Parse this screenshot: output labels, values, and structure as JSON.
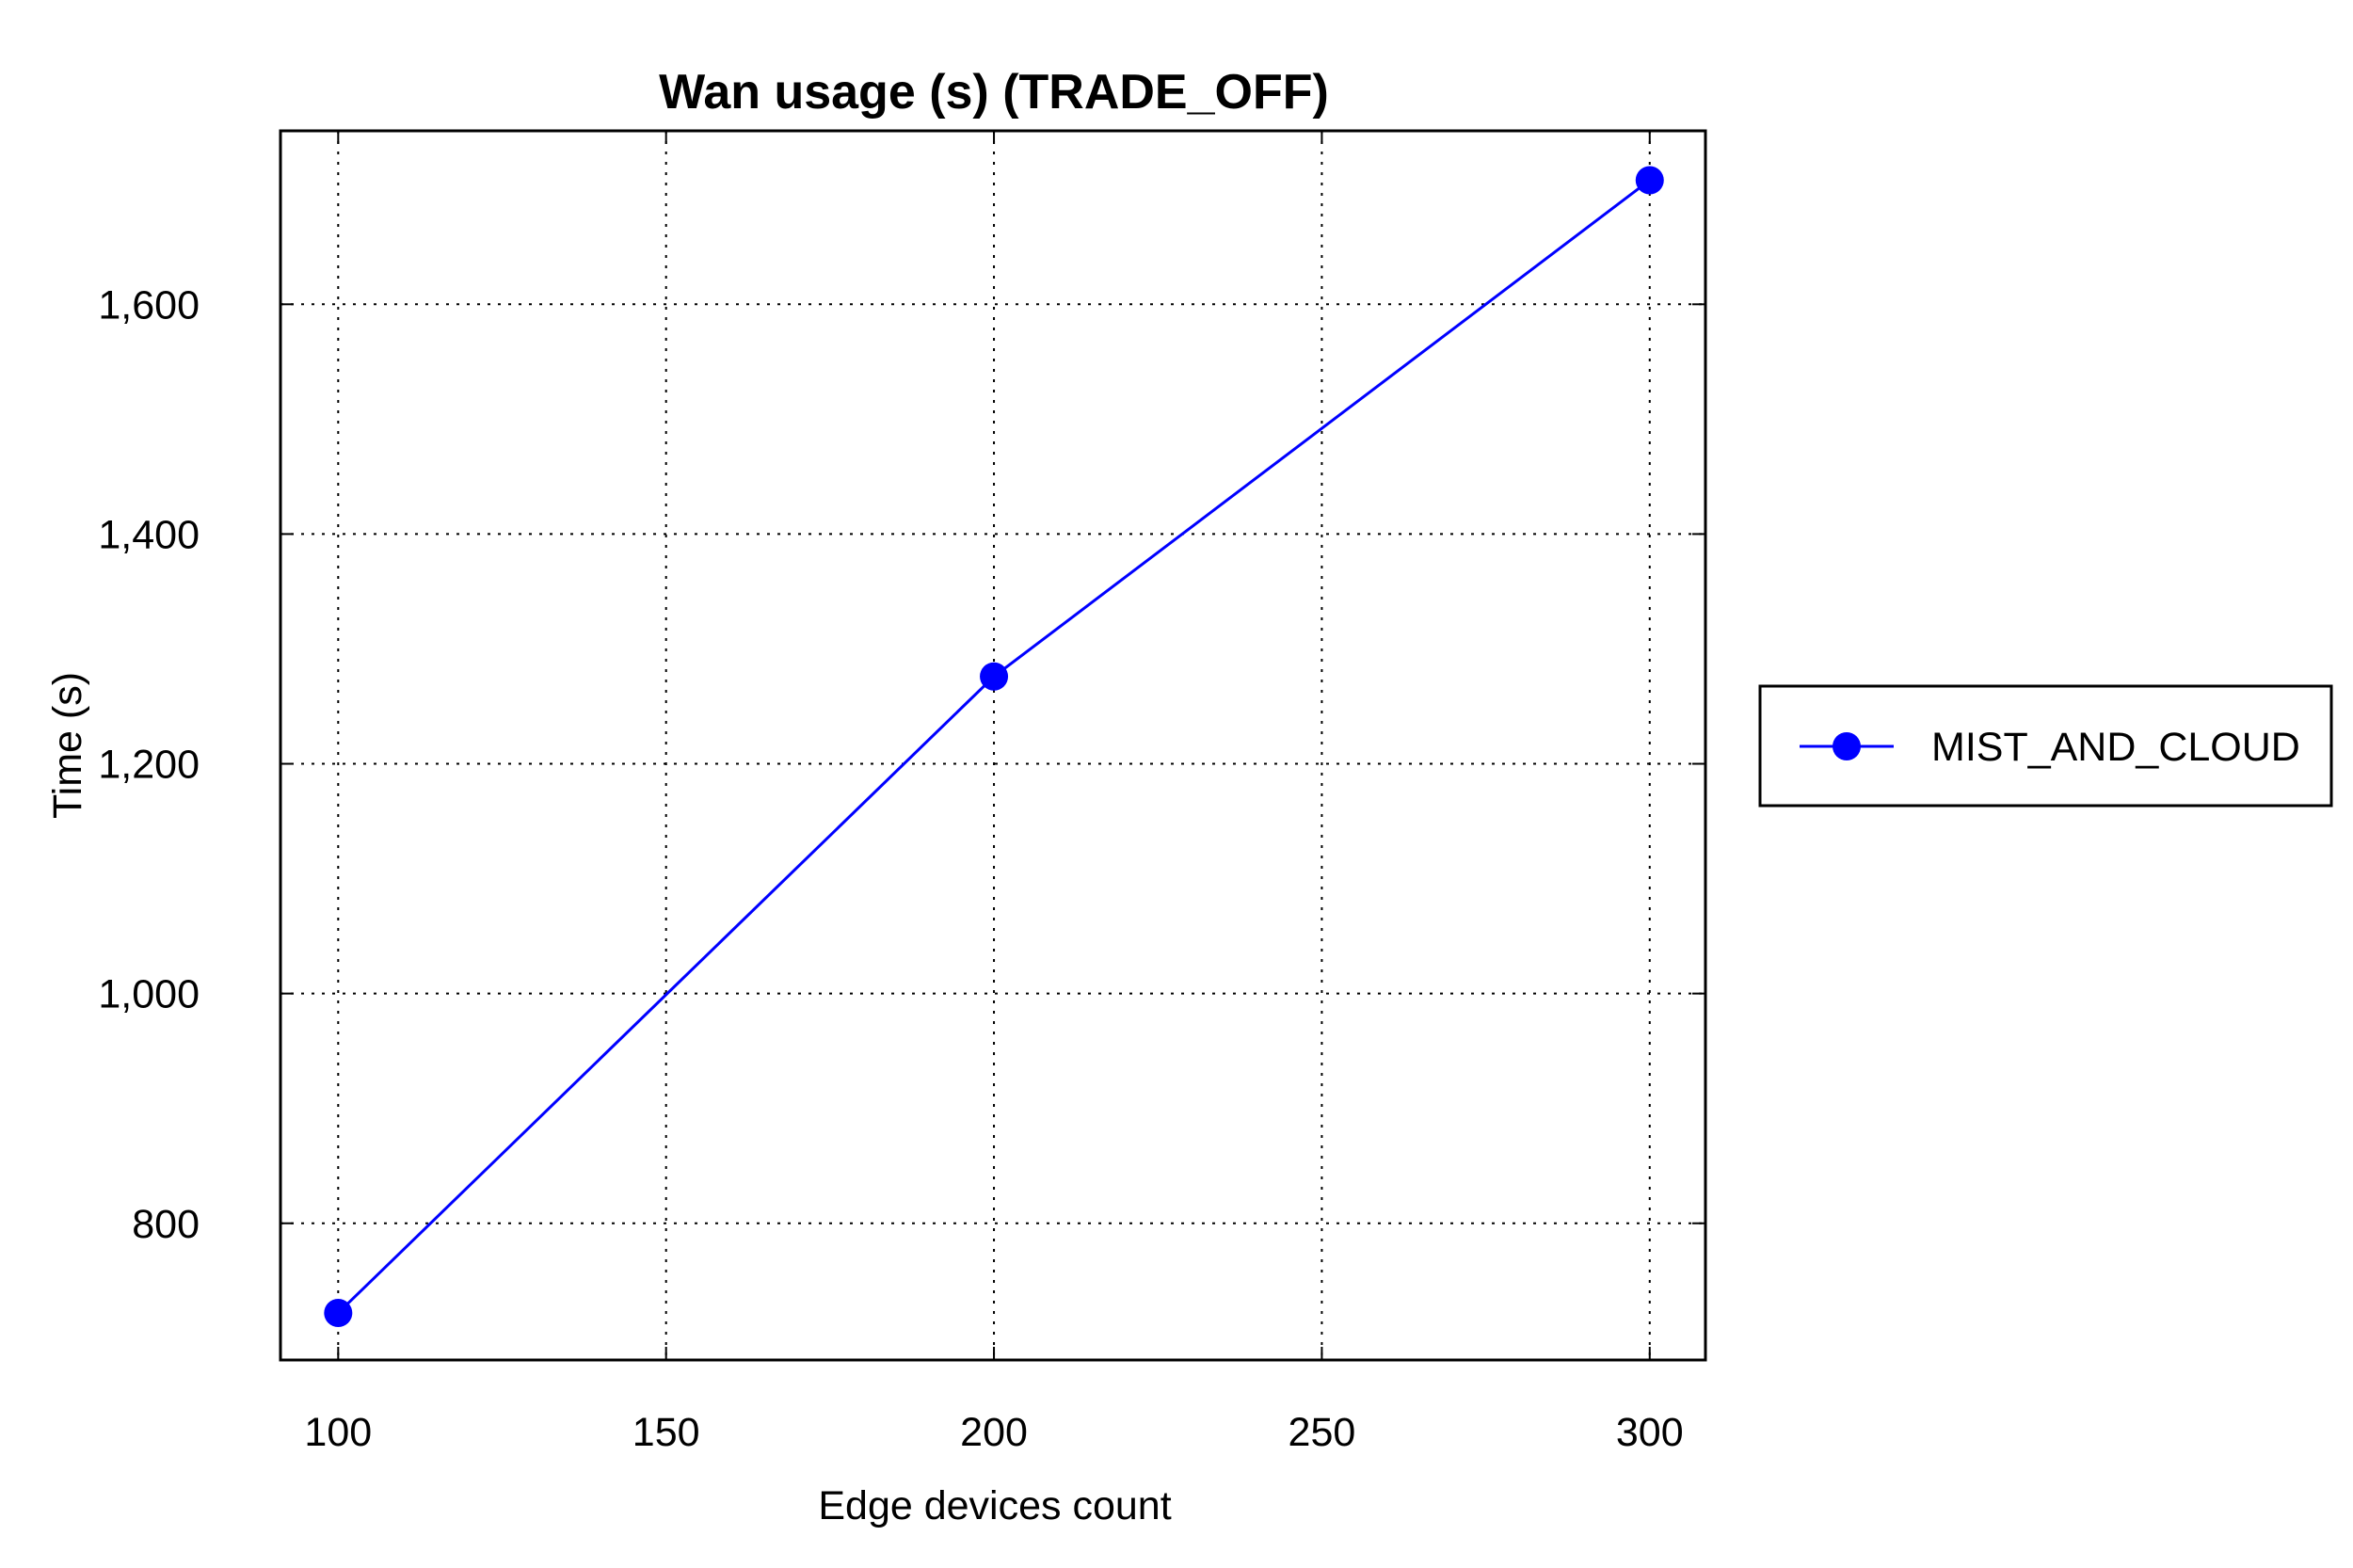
{
  "chart_data": {
    "type": "line",
    "title": "Wan usage (s) (TRADE_OFF)",
    "xlabel": "Edge devices count",
    "ylabel": "Time (s)",
    "x": [
      100,
      200,
      300
    ],
    "series": [
      {
        "name": "MIST_AND_CLOUD",
        "color": "#0000ff",
        "values": [
          722,
          1276,
          1708
        ]
      }
    ],
    "xlim": [
      91.2,
      308.5
    ],
    "ylim": [
      681,
      1751
    ],
    "xticks": [
      100,
      150,
      200,
      250,
      300
    ],
    "xtick_labels": [
      "100",
      "150",
      "200",
      "250",
      "300"
    ],
    "yticks": [
      800,
      1000,
      1200,
      1400,
      1600
    ],
    "ytick_labels": [
      "800",
      "1,000",
      "1,200",
      "1,400",
      "1,600"
    ],
    "grid": true,
    "legend_position": "right",
    "marker": "circle"
  }
}
